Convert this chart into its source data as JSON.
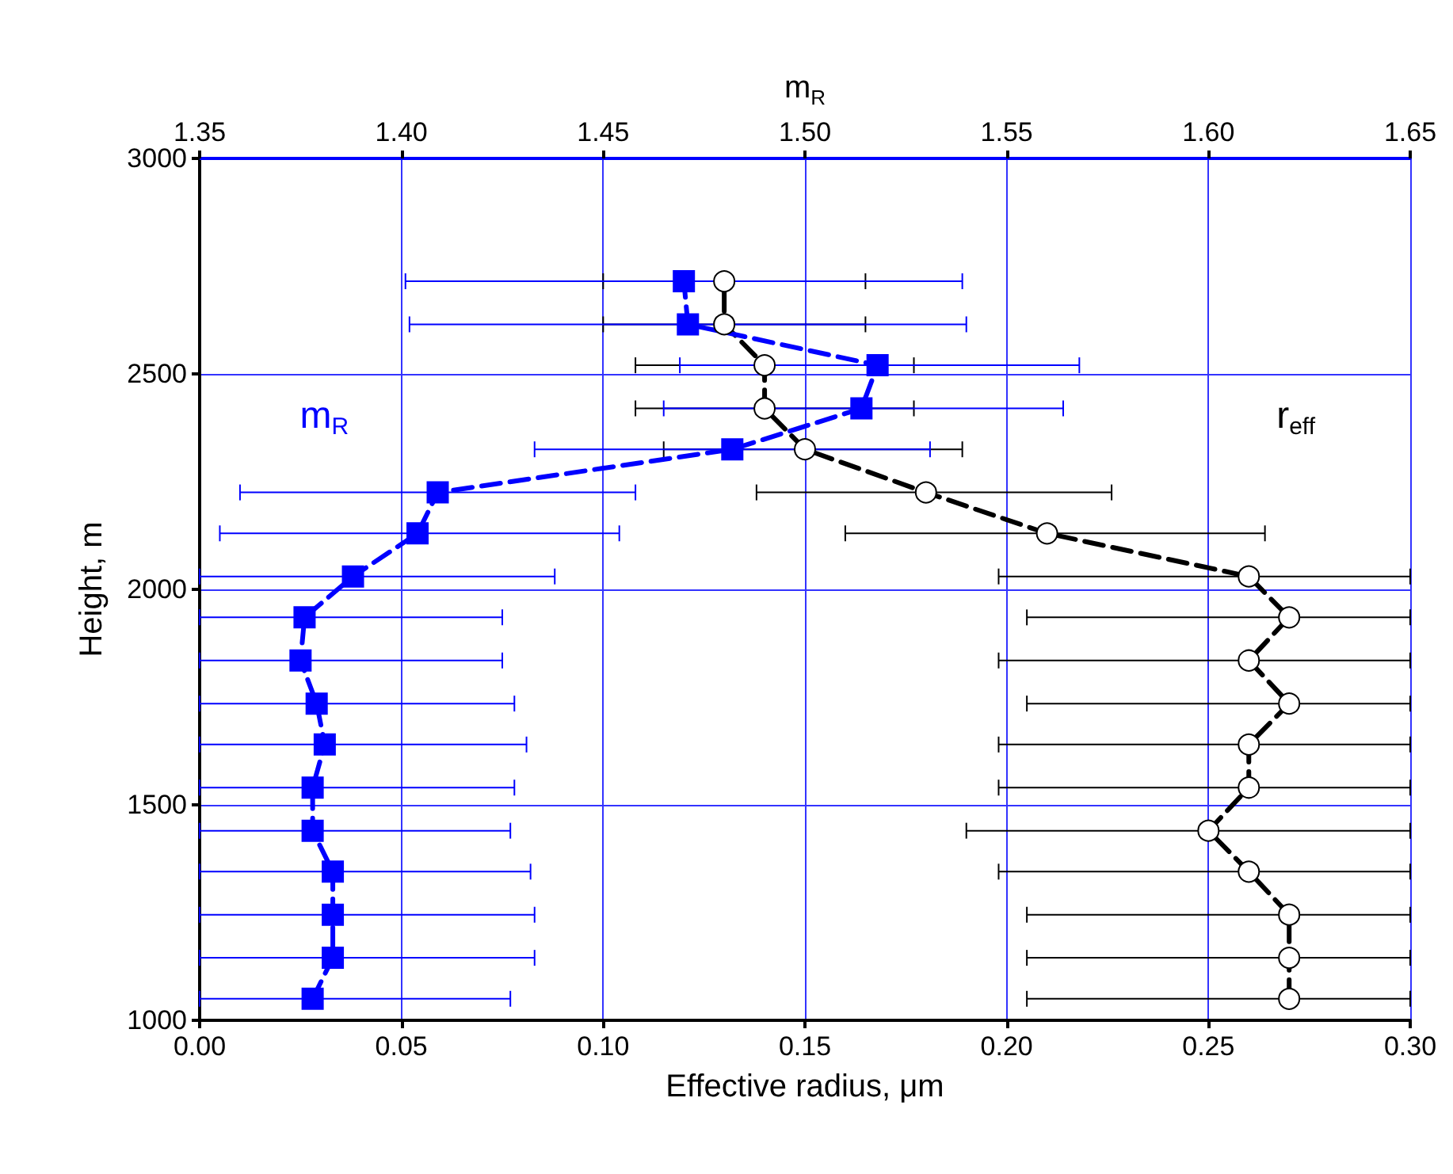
{
  "chart_data": {
    "type": "line",
    "xlabel": "Effective radius, μm",
    "x2label": "m$_{R}$",
    "ylabel": "Height, m",
    "xlim": [
      0,
      0.3
    ],
    "xticks": [
      {
        "value": 0,
        "label": "0.00"
      },
      {
        "value": 0.05,
        "label": "0.05"
      },
      {
        "value": 0.1,
        "label": "0.10"
      },
      {
        "value": 0.15,
        "label": "0.15"
      },
      {
        "value": 0.2,
        "label": "0.20"
      },
      {
        "value": 0.25,
        "label": "0.25"
      },
      {
        "value": 0.3,
        "label": "0.30"
      }
    ],
    "x2lim": [
      1.35,
      1.65
    ],
    "x2ticks": [
      {
        "value": 1.35,
        "label": "1.35"
      },
      {
        "value": 1.4,
        "label": "1.40"
      },
      {
        "value": 1.45,
        "label": "1.45"
      },
      {
        "value": 1.5,
        "label": "1.50"
      },
      {
        "value": 1.55,
        "label": "1.55"
      },
      {
        "value": 1.6,
        "label": "1.60"
      },
      {
        "value": 1.65,
        "label": "1.65"
      }
    ],
    "ylim": [
      1000,
      3000
    ],
    "yticks": [
      1000,
      1500,
      2000,
      2500,
      3000
    ],
    "grid": true,
    "line_style": "dashed",
    "series": [
      {
        "name": "r$_{eff}$",
        "color": "#000000",
        "marker": "circle",
        "x": [
          0.27,
          0.27,
          0.27,
          0.26,
          0.25,
          0.26,
          0.26,
          0.27,
          0.26,
          0.27,
          0.26,
          0.21,
          0.18,
          0.15,
          0.14,
          0.14,
          0.13,
          0.13
        ],
        "values": [
          1050,
          1145,
          1245,
          1345,
          1440,
          1540,
          1640,
          1735,
          1835,
          1935,
          2030,
          2130,
          2225,
          2325,
          2420,
          2520,
          2615,
          2715
        ],
        "xerrors": [
          [
            0.205,
            0.3
          ],
          [
            0.205,
            0.3
          ],
          [
            0.205,
            0.3
          ],
          [
            0.198,
            0.3
          ],
          [
            0.19,
            0.3
          ],
          [
            0.198,
            0.3
          ],
          [
            0.198,
            0.3
          ],
          [
            0.205,
            0.3
          ],
          [
            0.198,
            0.3
          ],
          [
            0.205,
            0.3
          ],
          [
            0.198,
            0.3
          ],
          [
            0.16,
            0.264
          ],
          [
            0.138,
            0.226
          ],
          [
            0.115,
            0.189
          ],
          [
            0.108,
            0.177
          ],
          [
            0.108,
            0.177
          ],
          [
            0.1,
            0.165
          ],
          [
            0.1,
            0.165
          ]
        ]
      },
      {
        "name": "m$_{R}$",
        "axis": "x2",
        "color": "#0000ff",
        "marker": "square",
        "x": [
          1.378,
          1.383,
          1.383,
          1.383,
          1.378,
          1.378,
          1.381,
          1.379,
          1.375,
          1.376,
          1.388,
          1.404,
          1.409,
          1.482,
          1.514,
          1.518,
          1.471,
          1.47
        ],
        "values": [
          1050,
          1145,
          1245,
          1345,
          1440,
          1540,
          1640,
          1735,
          1835,
          1935,
          2030,
          2130,
          2225,
          2325,
          2420,
          2520,
          2615,
          2715
        ],
        "xerrors": [
          [
            1.35,
            1.427
          ],
          [
            1.35,
            1.433
          ],
          [
            1.35,
            1.433
          ],
          [
            1.35,
            1.432
          ],
          [
            1.35,
            1.427
          ],
          [
            1.35,
            1.428
          ],
          [
            1.35,
            1.431
          ],
          [
            1.35,
            1.428
          ],
          [
            1.35,
            1.425
          ],
          [
            1.35,
            1.425
          ],
          [
            1.35,
            1.438
          ],
          [
            1.355,
            1.454
          ],
          [
            1.36,
            1.458
          ],
          [
            1.433,
            1.531
          ],
          [
            1.465,
            1.564
          ],
          [
            1.469,
            1.568
          ],
          [
            1.402,
            1.54
          ],
          [
            1.401,
            1.539
          ]
        ]
      }
    ]
  }
}
